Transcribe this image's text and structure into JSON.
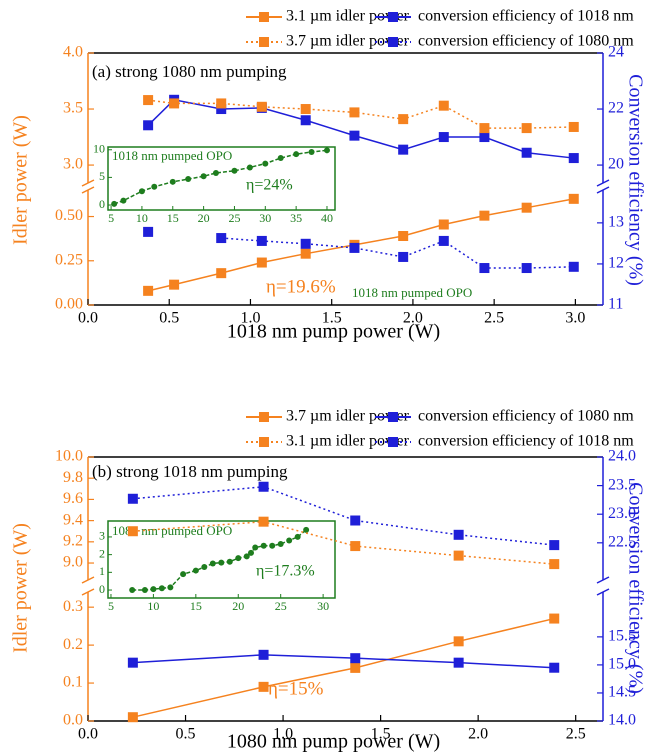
{
  "chart_data": [
    {
      "type": "line",
      "xlabel": "1018 nm pump power (W)",
      "ylabel": "Idler power (W)",
      "y2label": "Conversion efficiency (%)",
      "x": [
        0.37,
        0.53,
        0.82,
        1.07,
        1.34,
        1.64,
        1.94,
        2.19,
        2.44,
        2.7,
        2.99
      ],
      "xlim": [
        0,
        3.17
      ],
      "xticks": [
        {
          "value": 0,
          "label": "0.0"
        },
        {
          "value": 0.5,
          "label": "0.5"
        },
        {
          "value": 1,
          "label": "1.0"
        },
        {
          "value": 1.5,
          "label": "1.5"
        },
        {
          "value": 2,
          "label": "2.0"
        },
        {
          "value": 2.5,
          "label": "2.5"
        },
        {
          "value": 3,
          "label": "3.0"
        }
      ],
      "ylim": [
        0,
        4.0
      ],
      "ybreak": [
        0.65,
        2.84
      ],
      "yticks": [
        {
          "value": 0,
          "label": "0.00"
        },
        {
          "value": 0.25,
          "label": "0.25"
        },
        {
          "value": 0.5,
          "label": "0.50"
        },
        {
          "value": 3,
          "label": "3.0"
        },
        {
          "value": 3.5,
          "label": "3.5"
        },
        {
          "value": 4,
          "label": "4.0"
        }
      ],
      "y2lim": [
        11,
        24
      ],
      "y2break": [
        13.8,
        19.36
      ],
      "y2ticks": [
        11,
        12,
        13,
        20,
        22,
        24
      ],
      "series": [
        {
          "name": "3.1 µm idler power",
          "color": "#f5821f",
          "dash": "solid",
          "axis": "y",
          "values": [
            0.08,
            0.115,
            0.18,
            0.24,
            0.29,
            0.34,
            0.39,
            0.455,
            0.505,
            0.55,
            0.6
          ]
        },
        {
          "name": "conversion efficiency of 1018 nm",
          "color": "#1f1fd8",
          "dash": "solid",
          "axis": "y2",
          "values": [
            21.42,
            22.33,
            22.0,
            22.04,
            21.6,
            21.05,
            20.55,
            21.0,
            21.0,
            20.44,
            20.25
          ]
        },
        {
          "name": "3.7 µm idler power",
          "color": "#f5821f",
          "dash": "dot",
          "axis": "y",
          "values": [
            3.58,
            3.55,
            3.55,
            3.52,
            3.5,
            3.47,
            3.41,
            3.53,
            3.33,
            3.33,
            3.34
          ]
        },
        {
          "name": "conversion efficiency of 1080 nm",
          "color": "#1f1fd8",
          "dash": "dot",
          "axis": "y2",
          "values": [
            12.78,
            null,
            12.63,
            12.56,
            12.49,
            12.39,
            12.17,
            12.56,
            11.9,
            11.9,
            11.93
          ]
        }
      ],
      "annotations": [
        {
          "text": "(a) strong 1080 nm pumping",
          "color": "#000000"
        },
        {
          "text": "η=19.6%",
          "color": "#f5821f"
        },
        {
          "text": "1018 nm pumped OPO",
          "color": "#1e7d1e"
        }
      ],
      "inset": {
        "type": "line",
        "title": "1018 nm pumped OPO",
        "annotation": "η=24%",
        "color": "#1e7d1e",
        "x": [
          5.5,
          7,
          10,
          12,
          15,
          17.5,
          20,
          22,
          25,
          27.5,
          30,
          32.5,
          35,
          37.5,
          40
        ],
        "values": [
          0.2,
          0.8,
          2.5,
          3.3,
          4.2,
          4.7,
          5.2,
          5.8,
          6.2,
          6.8,
          7.5,
          8.5,
          9.2,
          9.6,
          9.9
        ],
        "xlim": [
          4.5,
          41.3
        ],
        "ylim": [
          -0.9,
          10.5
        ],
        "xticks": [
          5,
          10,
          15,
          20,
          25,
          30,
          35,
          40
        ],
        "yticks": [
          0,
          5,
          10
        ]
      }
    },
    {
      "type": "line",
      "xlabel": "1080 nm pump power (W)",
      "ylabel": "Idler power (W)",
      "y2label": "Conversion efficiency (%)",
      "x": [
        0.23,
        0.9,
        1.37,
        1.9,
        2.39
      ],
      "xlim": [
        0,
        2.64
      ],
      "xticks": [
        {
          "value": 0,
          "label": "0.0"
        },
        {
          "value": 0.5,
          "label": "0.5"
        },
        {
          "value": 1,
          "label": "1.0"
        },
        {
          "value": 1.5,
          "label": "1.5"
        },
        {
          "value": 2,
          "label": "2.0"
        },
        {
          "value": 2.5,
          "label": "2.5"
        }
      ],
      "ylim": [
        0,
        10.0
      ],
      "ybreak": [
        0.34,
        8.84
      ],
      "yticks": [
        {
          "value": 0,
          "label": "0.0"
        },
        0.1,
        0.2,
        0.3,
        {
          "value": 9,
          "label": "9.0"
        },
        9.2,
        9.4,
        9.6,
        9.8,
        {
          "value": 10,
          "label": "10.0"
        }
      ],
      "y2lim": [
        14,
        24
      ],
      "y2break": [
        16.3,
        21.85
      ],
      "y2ticks": [
        {
          "value": 14,
          "label": "14.0"
        },
        14.5,
        {
          "value": 15,
          "label": "15.0"
        },
        15.5,
        22.5,
        {
          "value": 23,
          "label": "23.0"
        },
        23.5,
        {
          "value": 24,
          "label": "24.0"
        }
      ],
      "series": [
        {
          "name": "3.7 µm idler power",
          "color": "#f5821f",
          "dash": "solid",
          "axis": "y",
          "values": [
            0.01,
            0.09,
            0.14,
            0.21,
            0.27
          ]
        },
        {
          "name": "conversion efficiency of 1080 nm",
          "color": "#1f1fd8",
          "dash": "solid",
          "axis": "y2",
          "values": [
            15.04,
            15.18,
            15.12,
            15.04,
            14.95
          ]
        },
        {
          "name": "3.1 µm idler power",
          "color": "#f5821f",
          "dash": "dot",
          "axis": "y",
          "values": [
            9.3,
            9.39,
            9.16,
            9.07,
            8.99
          ]
        },
        {
          "name": "conversion efficiency of 1018 nm",
          "color": "#1f1fd8",
          "dash": "dot",
          "axis": "y2",
          "values": [
            23.27,
            23.48,
            22.89,
            22.64,
            22.46
          ]
        }
      ],
      "annotations": [
        {
          "text": "(b) strong 1018 nm pumping",
          "color": "#000000"
        },
        {
          "text": "η=15%",
          "color": "#f5821f"
        }
      ],
      "inset": {
        "type": "line",
        "title": "1080 nm pumped OPO",
        "annotation": "η=17.3%",
        "color": "#1e7d1e",
        "x": [
          7.5,
          9,
          10,
          11,
          12,
          13.5,
          15,
          16,
          17,
          18,
          19,
          20,
          21,
          21.5,
          22,
          23,
          24,
          25,
          26,
          27,
          28
        ],
        "values": [
          0,
          0,
          0.05,
          0.1,
          0.15,
          0.9,
          1.1,
          1.3,
          1.5,
          1.55,
          1.6,
          1.8,
          1.9,
          2.1,
          2.4,
          2.5,
          2.5,
          2.6,
          2.8,
          3.0,
          3.4
        ],
        "xlim": [
          4.65,
          31.4
        ],
        "ylim": [
          -0.45,
          3.9
        ],
        "xticks": [
          5,
          10,
          15,
          20,
          25,
          30
        ],
        "yticks": [
          0,
          1,
          2,
          3
        ]
      }
    }
  ]
}
